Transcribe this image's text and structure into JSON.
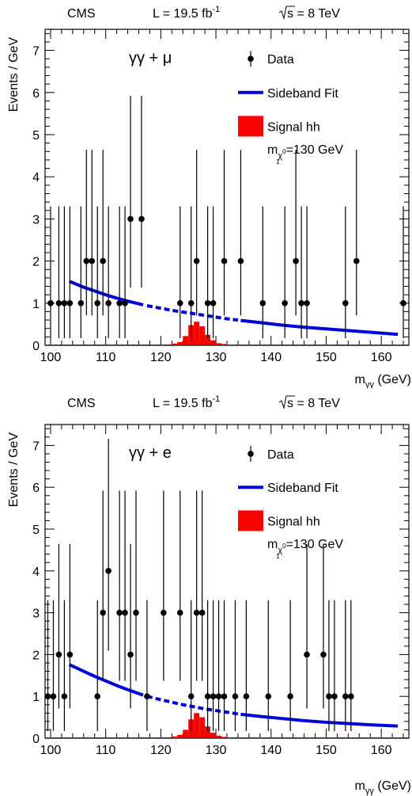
{
  "chart_data": [
    {
      "type": "scatter",
      "header": {
        "experiment": "CMS",
        "luminosity": "L = 19.5 fb",
        "lumi_exponent": "-1",
        "energy": "s = 8 TeV"
      },
      "channel": "γγ + μ",
      "xlabel": "m",
      "xlabel_sub": "γγ",
      "xlabel_unit": "(GeV)",
      "ylabel": "Events / GeV",
      "xlim": [
        99,
        165
      ],
      "ylim": [
        0,
        7.5
      ],
      "xticks": [
        100,
        110,
        120,
        130,
        140,
        150,
        160
      ],
      "yticks": [
        0,
        1,
        2,
        3,
        4,
        5,
        6,
        7
      ],
      "legend": {
        "position": "top-right",
        "data": "Data",
        "fit": "Sideband Fit",
        "signal": "Signal hh",
        "mass_prefix": "m",
        "mass_sub": "χ",
        "mass_sup": "0",
        "mass_subsub": "1",
        "mass_value": "=130 GeV"
      },
      "colors": {
        "data": "#000000",
        "fit": "#0000dd",
        "signal": "#ff0000",
        "signal_edge": "#990000"
      },
      "data": {
        "x": [
          100,
          101.5,
          102.5,
          103.5,
          105.5,
          106.5,
          107.5,
          108.5,
          109.5,
          110.5,
          112.5,
          113.5,
          114.5,
          116.5,
          123.5,
          125.5,
          126.5,
          128.5,
          129.5,
          131.5,
          134.5,
          138.5,
          142.5,
          144.5,
          145.5,
          146.5,
          153.5,
          155.5,
          164
        ],
        "y": [
          1,
          1,
          1,
          1,
          1,
          2,
          2,
          1,
          2,
          1,
          1,
          1,
          3,
          3,
          1,
          1,
          2,
          1,
          1,
          2,
          2,
          1,
          1,
          2,
          1,
          1,
          1,
          2,
          1
        ],
        "yerr_low": [
          0.83,
          0.83,
          0.83,
          0.83,
          0.83,
          1.29,
          1.29,
          0.83,
          1.29,
          0.83,
          0.83,
          0.83,
          1.63,
          1.63,
          0.83,
          0.83,
          1.29,
          0.83,
          0.83,
          1.29,
          1.29,
          0.83,
          0.83,
          1.29,
          0.83,
          0.83,
          0.83,
          1.29,
          0.83
        ],
        "yerr_high": [
          2.3,
          2.3,
          2.3,
          2.3,
          2.3,
          2.64,
          2.64,
          2.3,
          2.64,
          2.3,
          2.3,
          2.3,
          2.92,
          2.92,
          2.3,
          2.3,
          2.64,
          2.3,
          2.3,
          2.64,
          2.64,
          2.3,
          2.3,
          2.64,
          2.3,
          2.3,
          2.3,
          2.64,
          2.3
        ]
      },
      "fit": {
        "solid_left": {
          "x": [
            103.4,
            106,
            108,
            110,
            112,
            114,
            116.8
          ],
          "y": [
            1.52,
            1.38,
            1.29,
            1.2,
            1.12,
            1.05,
            0.96
          ]
        },
        "dashed": {
          "x": [
            117.5,
            120,
            122,
            124,
            126,
            128,
            130,
            132,
            134
          ],
          "y": [
            0.94,
            0.88,
            0.83,
            0.79,
            0.75,
            0.71,
            0.67,
            0.63,
            0.6
          ]
        },
        "solid_right": {
          "x": [
            134.5,
            138,
            142,
            146,
            150,
            154,
            158,
            163
          ],
          "y": [
            0.59,
            0.54,
            0.48,
            0.43,
            0.39,
            0.35,
            0.31,
            0.26
          ]
        }
      },
      "signal": {
        "edges": [
          117,
          118,
          119,
          120,
          121,
          122,
          123,
          124,
          125,
          126,
          127,
          128,
          129,
          130,
          131,
          132,
          133
        ],
        "values": [
          0.01,
          0.01,
          0.01,
          0.02,
          0.02,
          0.04,
          0.08,
          0.22,
          0.48,
          0.56,
          0.45,
          0.25,
          0.12,
          0.05,
          0.03,
          0.01
        ]
      }
    },
    {
      "type": "scatter",
      "header": {
        "experiment": "CMS",
        "luminosity": "L = 19.5 fb",
        "lumi_exponent": "-1",
        "energy": "s = 8 TeV"
      },
      "channel": "γγ + e",
      "xlabel": "m",
      "xlabel_sub": "γγ",
      "xlabel_unit": "(GeV)",
      "ylabel": "Events / GeV",
      "xlim": [
        99,
        165
      ],
      "ylim": [
        0,
        7.5
      ],
      "xticks": [
        100,
        110,
        120,
        130,
        140,
        150,
        160
      ],
      "yticks": [
        0,
        1,
        2,
        3,
        4,
        5,
        6,
        7
      ],
      "legend": {
        "position": "top-right",
        "data": "Data",
        "fit": "Sideband Fit",
        "signal": "Signal hh",
        "mass_prefix": "m",
        "mass_sub": "χ",
        "mass_sup": "0",
        "mass_subsub": "1",
        "mass_value": "=130 GeV"
      },
      "colors": {
        "data": "#000000",
        "fit": "#0000dd",
        "signal": "#ff0000",
        "signal_edge": "#990000"
      },
      "data": {
        "x": [
          99.5,
          100.5,
          101.5,
          102.5,
          103.5,
          108.5,
          109.5,
          110.5,
          112.5,
          113.5,
          114.5,
          115.5,
          117.5,
          120.5,
          123.5,
          125.5,
          126.5,
          127.5,
          128.5,
          129.5,
          130.5,
          131.5,
          133.5,
          135.5,
          139.5,
          143.5,
          146.5,
          149.5,
          150.5,
          151.5,
          153.5,
          154.5
        ],
        "y": [
          1,
          1,
          2,
          1,
          2,
          1,
          3,
          4,
          3,
          3,
          2,
          3,
          1,
          3,
          3,
          1,
          3,
          3,
          1,
          1,
          1,
          1,
          1,
          1,
          1,
          1,
          2,
          2,
          1,
          1,
          1,
          1
        ],
        "yerr_low": [
          0.83,
          0.83,
          1.29,
          0.83,
          1.29,
          0.83,
          1.63,
          1.91,
          1.63,
          1.63,
          1.29,
          1.63,
          0.83,
          1.63,
          1.63,
          0.83,
          1.63,
          1.63,
          0.83,
          0.83,
          0.83,
          0.83,
          0.83,
          0.83,
          0.83,
          0.83,
          1.29,
          1.29,
          0.83,
          0.83,
          0.83,
          0.83
        ],
        "yerr_high": [
          2.3,
          2.3,
          2.64,
          2.3,
          2.64,
          2.3,
          2.92,
          3.16,
          2.92,
          2.92,
          2.64,
          2.92,
          2.3,
          2.92,
          2.92,
          2.3,
          2.92,
          2.92,
          2.3,
          2.3,
          2.3,
          2.3,
          2.3,
          2.3,
          2.3,
          2.3,
          2.64,
          2.64,
          2.3,
          2.3,
          2.3,
          2.3
        ]
      },
      "fit": {
        "solid_left": {
          "x": [
            103.4,
            106,
            108,
            110,
            112,
            114,
            116.8
          ],
          "y": [
            1.76,
            1.6,
            1.48,
            1.37,
            1.26,
            1.16,
            1.03
          ]
        },
        "dashed": {
          "x": [
            117.5,
            120,
            122,
            124,
            126,
            128,
            130,
            132,
            134
          ],
          "y": [
            1.0,
            0.92,
            0.86,
            0.8,
            0.75,
            0.7,
            0.66,
            0.62,
            0.58
          ]
        },
        "solid_right": {
          "x": [
            134.5,
            138,
            142,
            146,
            150,
            154,
            158,
            163
          ],
          "y": [
            0.57,
            0.52,
            0.47,
            0.42,
            0.38,
            0.35,
            0.32,
            0.29
          ]
        }
      },
      "signal": {
        "edges": [
          117,
          118,
          119,
          120,
          121,
          122,
          123,
          124,
          125,
          126,
          127,
          128,
          129,
          130,
          131,
          132,
          133
        ],
        "values": [
          0.01,
          0.01,
          0.01,
          0.02,
          0.02,
          0.04,
          0.08,
          0.2,
          0.45,
          0.6,
          0.5,
          0.28,
          0.13,
          0.06,
          0.03,
          0.01
        ]
      }
    }
  ]
}
